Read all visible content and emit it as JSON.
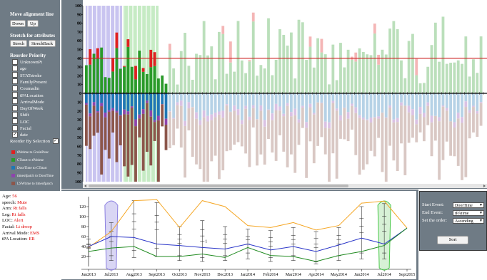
{
  "left_panel": {
    "move_title": "Move alignment line",
    "down_label": "Down",
    "up_label": "Up",
    "stretch_title": "Stretch for attributes",
    "strech_label": "Strech",
    "strechback_label": "StrechBack",
    "reorder_title": "Reorder Priority",
    "attributes": [
      {
        "label": "UnknownPt",
        "checked": false
      },
      {
        "label": "age",
        "checked": false
      },
      {
        "label": "STATstroke",
        "checked": false
      },
      {
        "label": "FamilyPresent",
        "checked": false
      },
      {
        "label": "Coumadin",
        "checked": false
      },
      {
        "label": "tPALocation",
        "checked": false
      },
      {
        "label": "ArrivalMode",
        "checked": false
      },
      {
        "label": "DayOfWeek",
        "checked": false
      },
      {
        "label": "Shift",
        "checked": false
      },
      {
        "label": "LOC",
        "checked": false
      },
      {
        "label": "Facial",
        "checked": false
      },
      {
        "label": "date",
        "checked": true
      }
    ],
    "reorder_selection_label": "Reorder By Selection",
    "legend": [
      {
        "label": "tPAtime to GroinPunc",
        "color": "#e02020"
      },
      {
        "label": "CTstart to tPAtime",
        "color": "#2a9a2a"
      },
      {
        "label": "DoorTime to CTstart",
        "color": "#1f77b4"
      },
      {
        "label": "timeofpatch to DoorTime",
        "color": "#8e44ad"
      },
      {
        "label": "LSWtime to timeofpatch",
        "color": "#8c564b"
      }
    ]
  },
  "patient_info": [
    {
      "key": "Age:",
      "value": "56"
    },
    {
      "key": "speech:",
      "value": "Mute"
    },
    {
      "key": "Arm:",
      "value": "Rt falls"
    },
    {
      "key": "Leg:",
      "value": "Rt falls"
    },
    {
      "key": "LOC:",
      "value": "Alert"
    },
    {
      "key": "Facial:",
      "value": "Lt droop"
    },
    {
      "key": "Arrival Mode:",
      "value": "EMS"
    },
    {
      "key": "tPA Location:",
      "value": "ER"
    }
  ],
  "top_chart": {
    "y_ticks_up": [
      "100",
      "90",
      "80",
      "70",
      "60",
      "50",
      "40",
      "30",
      "20",
      "10",
      "0"
    ],
    "y_ticks_down": [
      "10",
      "20",
      "30",
      "40",
      "50",
      "60",
      "70",
      "80",
      "90",
      "100"
    ],
    "colors": {
      "red": "#e02020",
      "green": "#2a9a2a",
      "blue": "#1f77b4",
      "purple": "#8e44ad",
      "brown": "#8c564b",
      "alignment": "#cc2222"
    }
  },
  "bottom_chart": {
    "y_ticks": [
      "120",
      "100",
      "80",
      "60",
      "40",
      "20"
    ],
    "x_labels": [
      "Jun2013",
      "Jul2013",
      "Aug2013",
      "Sept2013",
      "Oct2013",
      "Nov2013",
      "Dec2013",
      "Jan2014",
      "Feb2014",
      "Mar2014",
      "Apr2014",
      "May2014",
      "Jun2014",
      "Jul2014",
      "Sept2015"
    ],
    "annotation": "1",
    "colors": {
      "orange": "#f5a623",
      "blue": "#2a35c8",
      "green": "#1f8a1f"
    }
  },
  "right_panel": {
    "start_label": "Start Event:",
    "start_value": "DoorTime",
    "end_label": "End Event:",
    "end_value": "tPAtime",
    "order_label": "Set the order:",
    "order_value": "Ascending",
    "sort_label": "Sort"
  }
}
